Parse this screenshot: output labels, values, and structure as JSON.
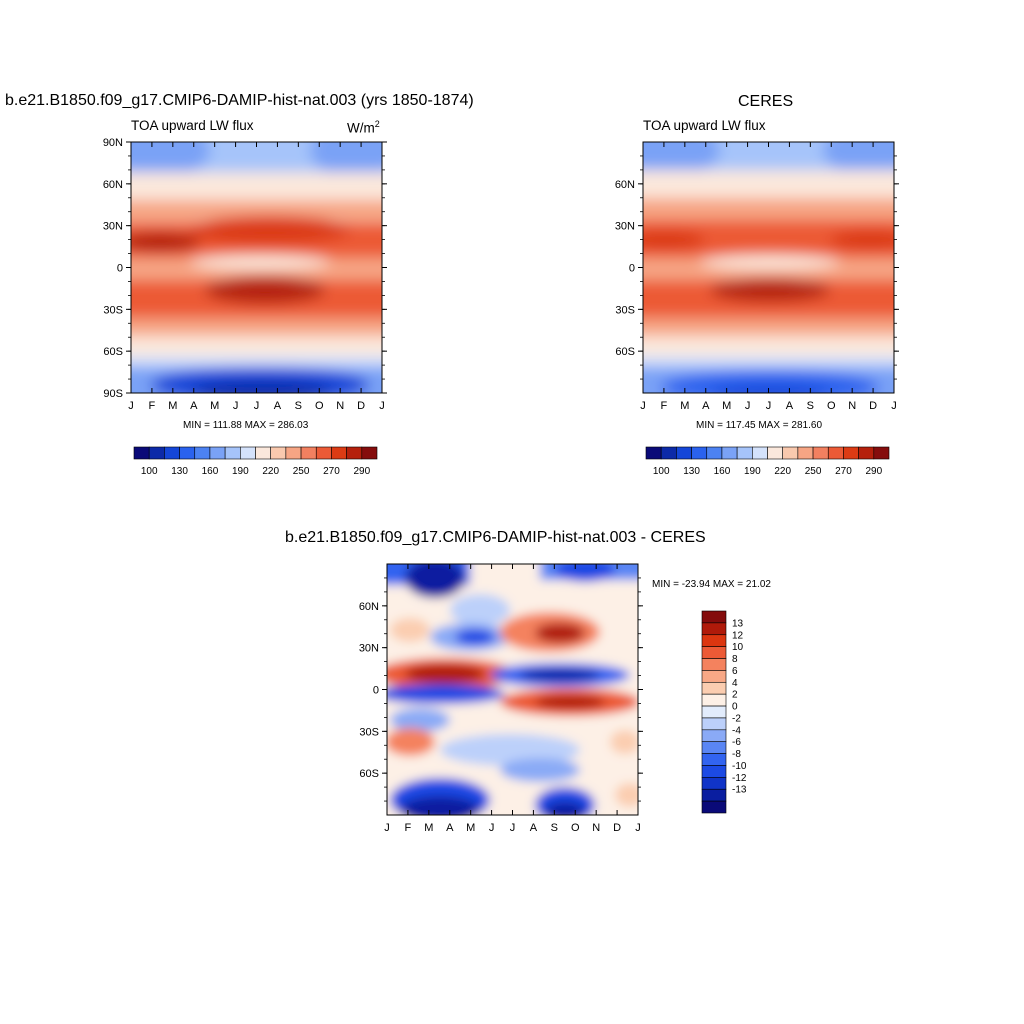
{
  "colors": {
    "abs_scale": [
      "#0a0a78",
      "#0c2aa8",
      "#1446d8",
      "#2a62ee",
      "#4c82f2",
      "#7aa2f6",
      "#a6c4fa",
      "#d4e2fb",
      "#fbe8dc",
      "#f9c9ae",
      "#f6a584",
      "#f28060",
      "#ec5a36",
      "#dc3b14",
      "#b5200c",
      "#850d0d"
    ],
    "diff_scale": [
      "#0a0a78",
      "#0a1ea0",
      "#1034c8",
      "#1c4ae4",
      "#3264f0",
      "#5a86f4",
      "#8aaaf6",
      "#bcd0fa",
      "#e2ecfc",
      "#fdf0e6",
      "#fbcdb0",
      "#f8a886",
      "#f4825e",
      "#ec5a36",
      "#dc3610",
      "#b01a0a",
      "#840c0c"
    ]
  },
  "chart_data": [
    {
      "type": "heatmap",
      "title": "b.e21.B1850.f09_g17.CMIP6-DAMIP-hist-nat.003 (yrs 1850-1874)",
      "left_label": "TOA upward LW flux",
      "units_base": "W/m",
      "units_sup": "2",
      "x_ticks": [
        "J",
        "F",
        "M",
        "A",
        "M",
        "J",
        "J",
        "A",
        "S",
        "O",
        "N",
        "D",
        "J"
      ],
      "y_ticks": [
        "90N",
        "60N",
        "30N",
        "0",
        "30S",
        "60S",
        "90S"
      ],
      "ylim": [
        -90,
        90
      ],
      "stats": "MIN = 111.88 MAX = 286.03",
      "min": 111.88,
      "max": 286.03,
      "colorbar_labels": [
        "100",
        "130",
        "160",
        "190",
        "220",
        "250",
        "270",
        "290"
      ]
    },
    {
      "type": "heatmap",
      "title": "CERES",
      "left_label": "TOA upward LW flux",
      "x_ticks": [
        "J",
        "F",
        "M",
        "A",
        "M",
        "J",
        "J",
        "A",
        "S",
        "O",
        "N",
        "D",
        "J"
      ],
      "y_ticks": [
        "60N",
        "30N",
        "0",
        "30S",
        "60S"
      ],
      "ylim": [
        -90,
        90
      ],
      "stats": "MIN = 117.45 MAX = 281.60",
      "min": 117.45,
      "max": 281.6,
      "colorbar_labels": [
        "100",
        "130",
        "160",
        "190",
        "220",
        "250",
        "270",
        "290"
      ]
    },
    {
      "type": "heatmap",
      "title": "b.e21.B1850.f09_g17.CMIP6-DAMIP-hist-nat.003 - CERES",
      "x_ticks": [
        "J",
        "F",
        "M",
        "A",
        "M",
        "J",
        "J",
        "A",
        "S",
        "O",
        "N",
        "D",
        "J"
      ],
      "y_ticks": [
        "60N",
        "30N",
        "0",
        "30S",
        "60S"
      ],
      "ylim": [
        -90,
        90
      ],
      "stats": "MIN = -23.94 MAX =  21.02",
      "min": -23.94,
      "max": 21.02,
      "colorbar_labels": [
        "13",
        "12",
        "10",
        "8",
        "6",
        "4",
        "2",
        "0",
        "-2",
        "-4",
        "-6",
        "-8",
        "-10",
        "-12",
        "-13"
      ]
    }
  ]
}
